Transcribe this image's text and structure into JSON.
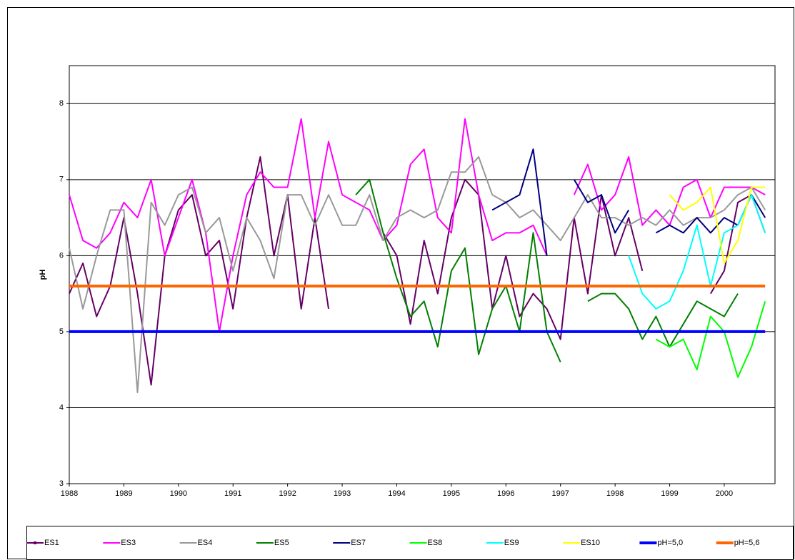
{
  "chart_data": {
    "type": "line",
    "y_label": "pH",
    "x": [
      1988,
      1988.25,
      1988.5,
      1988.75,
      1989,
      1989.25,
      1989.5,
      1989.75,
      1990,
      1990.25,
      1990.5,
      1990.75,
      1991,
      1991.25,
      1991.5,
      1991.75,
      1992,
      1992.25,
      1992.5,
      1992.75,
      1993,
      1993.25,
      1993.5,
      1993.75,
      1994,
      1994.25,
      1994.5,
      1994.75,
      1995,
      1995.25,
      1995.5,
      1995.75,
      1996,
      1996.25,
      1996.5,
      1996.75,
      1997,
      1997.25,
      1997.5,
      1997.75,
      1998,
      1998.25,
      1998.5,
      1998.75,
      1999,
      1999.25,
      1999.5,
      1999.75,
      2000,
      2000.25,
      2000.5,
      2000.75
    ],
    "xlim": [
      1988,
      2000.93
    ],
    "xticks": [
      1988,
      1989,
      1990,
      1991,
      1992,
      1993,
      1994,
      1995,
      1996,
      1997,
      1998,
      1999,
      2000
    ],
    "ylim": [
      3,
      8.5
    ],
    "yticks": [
      3,
      4,
      5,
      6,
      7,
      8
    ],
    "grid": true,
    "series": [
      {
        "name": "ES1",
        "color": "#660066",
        "width": 2,
        "marker": true,
        "values": [
          5.5,
          5.9,
          5.2,
          5.6,
          6.5,
          5.5,
          4.3,
          6.0,
          6.6,
          6.8,
          6.0,
          6.2,
          5.3,
          6.5,
          7.3,
          6.0,
          6.8,
          5.3,
          6.5,
          5.3,
          null,
          null,
          null,
          6.3,
          6.0,
          5.1,
          6.2,
          5.5,
          6.5,
          7.0,
          6.8,
          5.3,
          6.0,
          5.2,
          5.5,
          5.3,
          4.9,
          6.5,
          5.5,
          6.8,
          6.0,
          6.5,
          5.8,
          null,
          null,
          5.0,
          null,
          5.5,
          5.8,
          6.7,
          6.8,
          6.3
        ]
      },
      {
        "name": "ES3",
        "color": "#ff00ff",
        "width": 2,
        "values": [
          6.8,
          6.2,
          6.1,
          6.3,
          6.7,
          6.5,
          7.0,
          6.0,
          6.5,
          7.0,
          6.3,
          5.0,
          6.0,
          6.8,
          7.1,
          6.9,
          6.9,
          7.8,
          6.5,
          7.5,
          6.8,
          6.7,
          6.6,
          6.2,
          6.4,
          7.2,
          7.4,
          6.5,
          6.3,
          7.8,
          6.8,
          6.2,
          6.3,
          6.3,
          6.4,
          6.0,
          null,
          6.8,
          7.2,
          6.6,
          6.8,
          7.3,
          6.4,
          6.6,
          6.4,
          6.9,
          7.0,
          6.5,
          6.9,
          6.9,
          6.9,
          6.8
        ]
      },
      {
        "name": "ES4",
        "color": "#999999",
        "width": 2,
        "values": [
          6.1,
          5.3,
          6.0,
          6.6,
          6.6,
          4.2,
          6.7,
          6.4,
          6.8,
          6.9,
          6.3,
          6.5,
          5.8,
          6.5,
          6.2,
          5.7,
          6.8,
          6.8,
          6.4,
          6.8,
          6.4,
          6.4,
          6.8,
          6.2,
          6.5,
          6.6,
          6.5,
          6.6,
          7.1,
          7.1,
          7.3,
          6.8,
          6.7,
          6.5,
          6.6,
          6.4,
          6.2,
          6.5,
          6.8,
          6.5,
          6.5,
          6.4,
          6.5,
          6.4,
          6.6,
          6.4,
          6.5,
          6.5,
          6.6,
          6.8,
          6.9,
          6.6
        ]
      },
      {
        "name": "ES5",
        "color": "#008000",
        "width": 2,
        "values": [
          null,
          null,
          null,
          null,
          null,
          null,
          null,
          null,
          null,
          null,
          null,
          null,
          null,
          null,
          null,
          null,
          null,
          null,
          null,
          null,
          null,
          6.8,
          7.0,
          6.3,
          5.7,
          5.2,
          5.4,
          4.8,
          5.8,
          6.1,
          4.7,
          5.3,
          5.6,
          5.0,
          6.3,
          5.0,
          4.6,
          null,
          5.4,
          5.5,
          5.5,
          5.3,
          4.9,
          5.2,
          4.8,
          5.1,
          5.4,
          5.3,
          5.2,
          5.5,
          null,
          null
        ]
      },
      {
        "name": "ES7",
        "color": "#000080",
        "width": 2,
        "values": [
          null,
          null,
          null,
          null,
          null,
          null,
          null,
          null,
          null,
          null,
          null,
          null,
          null,
          null,
          null,
          null,
          null,
          null,
          null,
          null,
          null,
          null,
          null,
          null,
          null,
          null,
          null,
          null,
          null,
          null,
          null,
          6.6,
          6.7,
          6.8,
          7.4,
          6.0,
          null,
          7.0,
          6.7,
          6.8,
          6.3,
          6.6,
          null,
          6.3,
          6.4,
          6.3,
          6.5,
          6.3,
          6.5,
          6.4,
          6.8,
          6.5
        ]
      },
      {
        "name": "ES8",
        "color": "#00ff00",
        "width": 2,
        "values": [
          null,
          null,
          null,
          null,
          null,
          null,
          null,
          null,
          null,
          null,
          null,
          null,
          null,
          null,
          null,
          null,
          null,
          null,
          null,
          null,
          null,
          null,
          null,
          null,
          null,
          null,
          null,
          null,
          null,
          null,
          null,
          null,
          null,
          null,
          null,
          null,
          null,
          null,
          null,
          null,
          null,
          null,
          null,
          4.9,
          4.8,
          4.9,
          4.5,
          5.2,
          5.0,
          4.4,
          4.8,
          5.4
        ]
      },
      {
        "name": "ES9",
        "color": "#00ffff",
        "width": 2,
        "values": [
          null,
          null,
          null,
          null,
          null,
          null,
          null,
          null,
          null,
          null,
          null,
          null,
          null,
          null,
          null,
          null,
          null,
          null,
          null,
          null,
          null,
          null,
          null,
          null,
          null,
          null,
          null,
          null,
          null,
          null,
          null,
          null,
          null,
          null,
          null,
          null,
          null,
          null,
          null,
          null,
          null,
          6.0,
          5.5,
          5.3,
          5.4,
          5.8,
          6.4,
          5.6,
          6.3,
          6.4,
          6.8,
          6.3
        ]
      },
      {
        "name": "ES10",
        "color": "#ffff00",
        "width": 2,
        "values": [
          null,
          null,
          null,
          null,
          null,
          null,
          null,
          null,
          null,
          null,
          null,
          null,
          null,
          null,
          null,
          null,
          null,
          null,
          null,
          null,
          null,
          null,
          null,
          null,
          null,
          null,
          null,
          null,
          null,
          null,
          null,
          null,
          null,
          null,
          null,
          null,
          null,
          null,
          null,
          null,
          null,
          null,
          null,
          null,
          6.8,
          6.6,
          6.7,
          6.9,
          5.9,
          6.2,
          6.9,
          6.9
        ]
      },
      {
        "name": "pH=5,0",
        "color": "#0000ff",
        "width": 4,
        "values": [
          5,
          5,
          5,
          5,
          5,
          5,
          5,
          5,
          5,
          5,
          5,
          5,
          5,
          5,
          5,
          5,
          5,
          5,
          5,
          5,
          5,
          5,
          5,
          5,
          5,
          5,
          5,
          5,
          5,
          5,
          5,
          5,
          5,
          5,
          5,
          5,
          5,
          5,
          5,
          5,
          5,
          5,
          5,
          5,
          5,
          5,
          5,
          5,
          5,
          5,
          5,
          5
        ]
      },
      {
        "name": "pH=5,6",
        "color": "#ff6600",
        "width": 4,
        "values": [
          5.6,
          5.6,
          5.6,
          5.6,
          5.6,
          5.6,
          5.6,
          5.6,
          5.6,
          5.6,
          5.6,
          5.6,
          5.6,
          5.6,
          5.6,
          5.6,
          5.6,
          5.6,
          5.6,
          5.6,
          5.6,
          5.6,
          5.6,
          5.6,
          5.6,
          5.6,
          5.6,
          5.6,
          5.6,
          5.6,
          5.6,
          5.6,
          5.6,
          5.6,
          5.6,
          5.6,
          5.6,
          5.6,
          5.6,
          5.6,
          5.6,
          5.6,
          5.6,
          5.6,
          5.6,
          5.6,
          5.6,
          5.6,
          5.6,
          5.6,
          5.6,
          5.6
        ]
      }
    ]
  }
}
